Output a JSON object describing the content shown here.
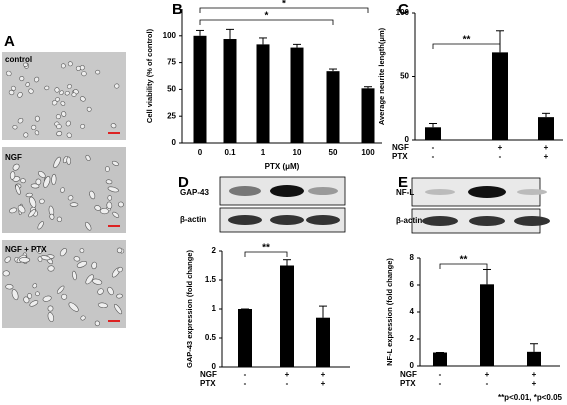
{
  "images": {
    "panel": "A",
    "labels": [
      "control",
      "NGF",
      "NGF + PTX"
    ]
  },
  "footnote": "**p<0.01, *p<0.05",
  "chart_data": [
    {
      "type": "bar",
      "panel": "B",
      "ylabel": "Cell viability (% of control)",
      "xlabel": "PTX (μM)",
      "categories": [
        "0",
        "0.1",
        "1",
        "10",
        "50",
        "100"
      ],
      "values": [
        100,
        97,
        92,
        89,
        67,
        51
      ],
      "errors": [
        5,
        9,
        6,
        3,
        2,
        1.5
      ],
      "color": "#000000",
      "ylim": [
        0,
        125
      ],
      "yticks": [
        0,
        25,
        50,
        75,
        100
      ],
      "significance": [
        {
          "label": "*",
          "between": [
            0,
            5
          ]
        },
        {
          "label": "*",
          "between": [
            0,
            4
          ]
        }
      ]
    },
    {
      "type": "bar",
      "panel": "C",
      "ylabel": "Average neurite length(μm)",
      "conditions": [
        {
          "name": "NGF",
          "values": [
            "-",
            "+",
            "+"
          ]
        },
        {
          "name": "PTX",
          "values": [
            "-",
            "-",
            "+"
          ]
        }
      ],
      "values": [
        10,
        69,
        18
      ],
      "errors": [
        3,
        17,
        3
      ],
      "color": "#000000",
      "ylim": [
        0,
        100
      ],
      "yticks": [
        0,
        50,
        100
      ],
      "significance": [
        {
          "label": "**",
          "between": [
            0,
            1
          ]
        }
      ]
    },
    {
      "type": "bar",
      "panel": "D",
      "ylabel": "GAP-43 expression (fold change)",
      "blots": [
        "GAP-43",
        "β-actin"
      ],
      "conditions": [
        {
          "name": "NGF",
          "values": [
            "-",
            "+",
            "+"
          ]
        },
        {
          "name": "PTX",
          "values": [
            "-",
            "-",
            "+"
          ]
        }
      ],
      "values": [
        1,
        1.75,
        0.85
      ],
      "errors": [
        0,
        0.1,
        0.2
      ],
      "color": "#000000",
      "ylim": [
        0,
        2
      ],
      "yticks": [
        0,
        0.5,
        1,
        1.5,
        2
      ],
      "significance": [
        {
          "label": "**",
          "between": [
            0,
            1
          ]
        }
      ]
    },
    {
      "type": "bar",
      "panel": "E",
      "ylabel": "NF-L expression (fold change)",
      "blots": [
        "NF-L",
        "β-actin"
      ],
      "conditions": [
        {
          "name": "NGF",
          "values": [
            "-",
            "+",
            "+"
          ]
        },
        {
          "name": "PTX",
          "values": [
            "-",
            "-",
            "+"
          ]
        }
      ],
      "values": [
        1,
        6.05,
        1.05
      ],
      "errors": [
        0,
        1.1,
        0.6
      ],
      "color": "#000000",
      "ylim": [
        0,
        8
      ],
      "yticks": [
        0,
        2,
        4,
        6,
        8
      ],
      "significance": [
        {
          "label": "**",
          "between": [
            0,
            1
          ]
        }
      ]
    }
  ]
}
